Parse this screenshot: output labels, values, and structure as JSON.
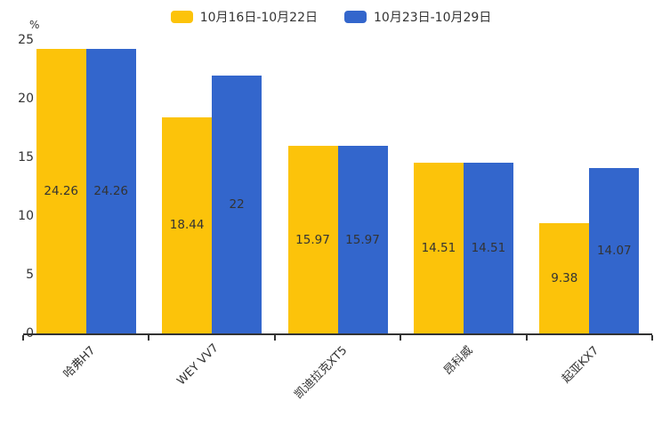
{
  "chart_data": {
    "type": "bar",
    "title": "",
    "xlabel": "",
    "ylabel": "%",
    "categories": [
      "哈弗H7",
      "WEY VV7",
      "凯迪拉克XT5",
      "昂科威",
      "起亚KX7"
    ],
    "series": [
      {
        "name": "10月16日-10月22日",
        "color": "#FCC30A",
        "values": [
          24.26,
          18.44,
          15.97,
          14.51,
          9.38
        ]
      },
      {
        "name": "10月23日-10月29日",
        "color": "#3366CC",
        "values": [
          24.26,
          22,
          15.97,
          14.51,
          14.07
        ]
      }
    ],
    "ylim": [
      0,
      25
    ],
    "yticks": [
      0,
      5,
      10,
      15,
      20,
      25
    ],
    "grid": false,
    "legend_position": "top",
    "value_label_color": "#333333",
    "axis_color": "#333333"
  }
}
